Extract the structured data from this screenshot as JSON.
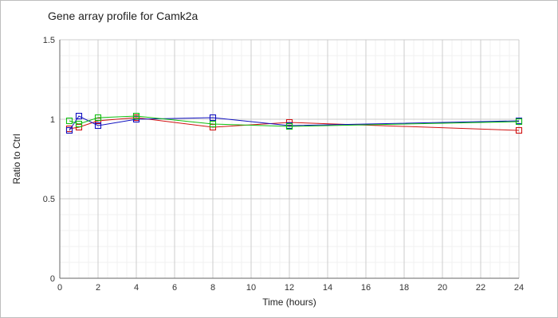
{
  "chart_data": {
    "type": "line",
    "title": "Gene array profile for Camk2a",
    "xlabel": "Time (hours)",
    "ylabel": "Ratio to Ctrl",
    "xlim": [
      0,
      24
    ],
    "ylim": [
      0,
      1.5
    ],
    "x_ticks": [
      0,
      2,
      4,
      6,
      8,
      10,
      12,
      14,
      16,
      18,
      20,
      22,
      24
    ],
    "y_ticks": [
      0,
      0.5,
      1,
      1.5
    ],
    "y_tick_labels": [
      "0",
      "0.5",
      "1",
      "1.5"
    ],
    "grid": true,
    "legend": "none",
    "series": [
      {
        "color": "#d01010",
        "marker": "square",
        "points": [
          [
            0.5,
            0.94
          ],
          [
            1,
            0.95
          ],
          [
            2,
            0.99
          ],
          [
            4,
            1.01
          ],
          [
            8,
            0.95
          ],
          [
            12,
            0.98
          ],
          [
            24,
            0.93
          ]
        ]
      },
      {
        "color": "#1010c0",
        "marker": "square",
        "points": [
          [
            0.5,
            0.93
          ],
          [
            1,
            1.02
          ],
          [
            2,
            0.96
          ],
          [
            4,
            1.0
          ],
          [
            8,
            1.01
          ],
          [
            12,
            0.96
          ],
          [
            24,
            0.99
          ]
        ]
      },
      {
        "color": "#10c010",
        "marker": "square",
        "points": [
          [
            0.5,
            0.99
          ],
          [
            1,
            0.97
          ],
          [
            2,
            1.01
          ],
          [
            4,
            1.02
          ],
          [
            8,
            0.97
          ],
          [
            12,
            0.955
          ],
          [
            24,
            0.985
          ]
        ]
      }
    ]
  }
}
